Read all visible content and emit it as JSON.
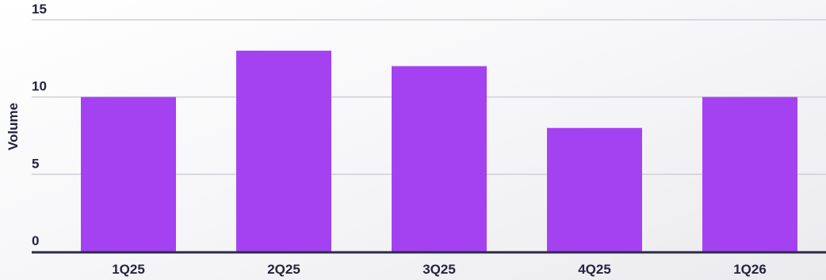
{
  "chart_data": {
    "type": "bar",
    "categories": [
      "1Q25",
      "2Q25",
      "3Q25",
      "4Q25",
      "1Q26"
    ],
    "values": [
      10,
      13,
      12,
      8,
      10
    ],
    "ylabel": "Volume",
    "ylim": [
      0,
      15
    ],
    "yticks": [
      "0",
      "5",
      "10",
      "15"
    ],
    "grid": true,
    "legend": "none",
    "colors": {
      "bar": "#a442f1",
      "grid": "#cfcfd6",
      "axis": "#2b2a4a",
      "text": "#24233f"
    }
  }
}
